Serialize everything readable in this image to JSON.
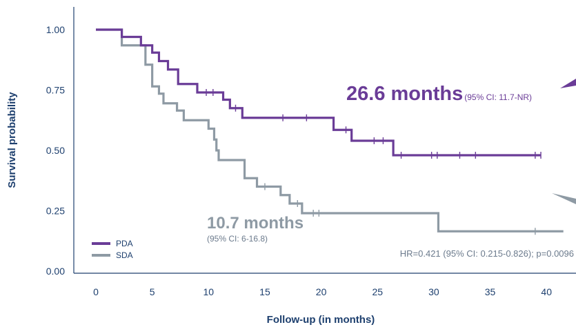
{
  "chart_data": {
    "type": "line",
    "xlabel": "Follow-up (in months)",
    "ylabel": "Survival probability",
    "xlim": [
      -3,
      42
    ],
    "ylim": [
      0,
      1.1
    ],
    "x_ticks": [
      "0",
      "5",
      "10",
      "15",
      "20",
      "25",
      "30",
      "35",
      "40"
    ],
    "y_ticks": [
      "0.00",
      "0.25",
      "0.50",
      "0.75",
      "1.00"
    ],
    "series": [
      {
        "name": "PDA",
        "color": "#6a3c97",
        "steps": [
          [
            0,
            1.0
          ],
          [
            2.3,
            0.97
          ],
          [
            4.0,
            0.935
          ],
          [
            5.0,
            0.905
          ],
          [
            5.6,
            0.87
          ],
          [
            6.4,
            0.835
          ],
          [
            7.3,
            0.775
          ],
          [
            9.0,
            0.74
          ],
          [
            11.3,
            0.71
          ],
          [
            11.9,
            0.675
          ],
          [
            13.0,
            0.635
          ],
          [
            21.1,
            0.585
          ],
          [
            22.7,
            0.54
          ],
          [
            26.4,
            0.48
          ],
          [
            39.5,
            0.48
          ]
        ],
        "censored": [
          [
            9.8,
            0.74
          ],
          [
            10.4,
            0.74
          ],
          [
            12.4,
            0.675
          ],
          [
            16.6,
            0.635
          ],
          [
            18.7,
            0.635
          ],
          [
            22.2,
            0.585
          ],
          [
            24.7,
            0.54
          ],
          [
            25.5,
            0.54
          ],
          [
            27.1,
            0.48
          ],
          [
            29.8,
            0.48
          ],
          [
            30.3,
            0.48
          ],
          [
            32.3,
            0.48
          ],
          [
            33.7,
            0.48
          ],
          [
            39.0,
            0.48
          ],
          [
            39.5,
            0.48
          ]
        ]
      },
      {
        "name": "SDA",
        "color": "#8e9aa4",
        "steps": [
          [
            0,
            1.0
          ],
          [
            2.3,
            0.935
          ],
          [
            4.4,
            0.855
          ],
          [
            5.0,
            0.765
          ],
          [
            5.6,
            0.735
          ],
          [
            6.0,
            0.695
          ],
          [
            7.2,
            0.665
          ],
          [
            7.8,
            0.625
          ],
          [
            10.0,
            0.59
          ],
          [
            10.5,
            0.545
          ],
          [
            10.7,
            0.5
          ],
          [
            10.9,
            0.46
          ],
          [
            13.2,
            0.385
          ],
          [
            14.3,
            0.35
          ],
          [
            16.4,
            0.315
          ],
          [
            17.2,
            0.28
          ],
          [
            18.3,
            0.24
          ],
          [
            30.4,
            0.165
          ],
          [
            41.5,
            0.165
          ]
        ],
        "censored": [
          [
            15.0,
            0.35
          ],
          [
            17.9,
            0.28
          ],
          [
            19.3,
            0.24
          ],
          [
            19.8,
            0.24
          ],
          [
            39.0,
            0.165
          ]
        ]
      }
    ],
    "annotations": {
      "pda_median": "26.6 months",
      "pda_ci": "(95% CI: 11.7-NR)",
      "sda_median": "10.7 months",
      "sda_ci": "(95% CI: 6-16.8)",
      "hr": "HR=0.421 (95% CI: 0.215-0.826); p=0.0096"
    },
    "legend": [
      "PDA",
      "SDA"
    ],
    "legend_position": "bottom-left",
    "grid": false
  }
}
